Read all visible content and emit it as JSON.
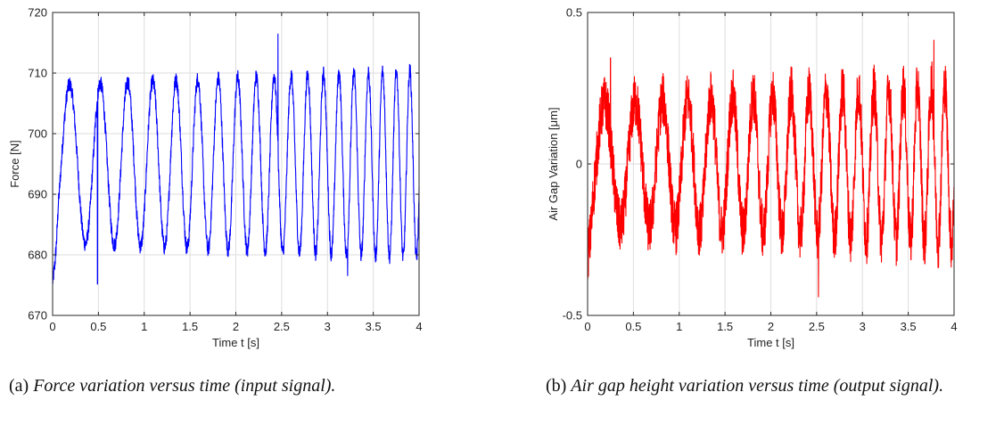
{
  "chart_data": [
    {
      "type": "line",
      "xlabel": "Time t [s]",
      "ylabel": "Force [N]",
      "xlim": [
        0,
        4
      ],
      "ylim": [
        670,
        720
      ],
      "xticks": [
        "0",
        "0.5",
        "1",
        "1.5",
        "2",
        "2.5",
        "3",
        "3.5",
        "4"
      ],
      "yticks": [
        "670",
        "680",
        "690",
        "700",
        "710",
        "720"
      ],
      "grid": true,
      "color": "#0000ff",
      "signal": "chirp",
      "f0_hz": 2.6,
      "f1_hz": 7.0,
      "offset": 695,
      "amplitude_start": 13,
      "amplitude_end": 15.5,
      "start_value": 675.5,
      "noise": 1.3,
      "spikes": [
        {
          "x": 2.46,
          "y": 716.5
        },
        {
          "x": 3.22,
          "y": 676.5
        },
        {
          "x": 0.49,
          "y": 675.2
        }
      ],
      "series": [
        {
          "x": [
            0,
            0.25,
            0.5,
            0.66,
            0.95,
            1.22,
            1.4,
            1.6,
            2.0,
            2.46,
            3.0,
            3.22,
            3.5,
            4.0
          ],
          "y": [
            675,
            709,
            677,
            712,
            711,
            680,
            711,
            712,
            711,
            716.5,
            711,
            676.5,
            712,
            711
          ]
        }
      ]
    },
    {
      "type": "line",
      "xlabel": "Time t [s]",
      "ylabel": "Air Gap Variation [μm]",
      "xlim": [
        0,
        4
      ],
      "ylim": [
        -0.5,
        0.5
      ],
      "xticks": [
        "0",
        "0.5",
        "1",
        "1.5",
        "2",
        "2.5",
        "3",
        "3.5",
        "4"
      ],
      "yticks": [
        "-0.5",
        "0",
        "0.5"
      ],
      "grid": true,
      "color": "#ff0000",
      "signal": "chirp",
      "f0_hz": 2.6,
      "f1_hz": 7.0,
      "offset": 0,
      "amplitude_start": 0.2,
      "amplitude_end": 0.26,
      "start_value": -0.3,
      "noise": 0.09,
      "spikes": [
        {
          "x": 2.52,
          "y": -0.44
        },
        {
          "x": 3.78,
          "y": 0.41
        },
        {
          "x": 0.25,
          "y": 0.35
        }
      ],
      "series": [
        {
          "x": [
            0,
            0.25,
            0.5,
            1.0,
            1.5,
            2.0,
            2.52,
            3.0,
            3.5,
            3.78,
            4.0
          ],
          "y": [
            -0.3,
            0.35,
            -0.41,
            0.31,
            0.3,
            0.3,
            -0.44,
            0.32,
            0.32,
            0.41,
            0.35
          ]
        }
      ]
    }
  ],
  "captions": [
    {
      "label": "(a)",
      "text": "Force variation versus time (input signal)."
    },
    {
      "label": "(b)",
      "text": "Air gap height variation versus time (output signal)."
    }
  ]
}
